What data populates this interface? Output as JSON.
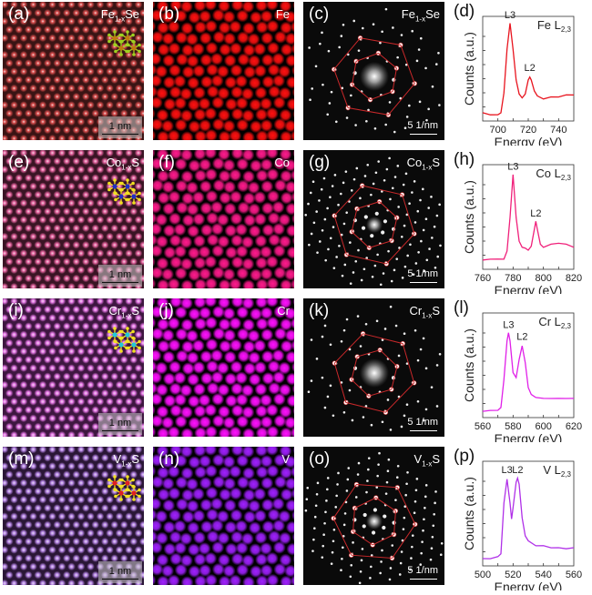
{
  "figure": {
    "rows": [
      {
        "haadf": {
          "label": "(a)",
          "compound_base": "Fe",
          "compound_sub": "1-x",
          "compound_end": "Se",
          "scale": "1 nm",
          "color": "#e05050",
          "bg": "#3a1414",
          "model_center": "#c07a10",
          "model_ligand": "#9fd020"
        },
        "map": {
          "label": "(b)",
          "element": "Fe",
          "color": "#ff1010"
        },
        "diffraction": {
          "label": "(c)",
          "compound_base": "Fe",
          "compound_sub": "1-x",
          "compound_end": "Se",
          "scale": "5 1/nm"
        },
        "eels": {
          "label": "(d)",
          "element_label": "Fe L",
          "edge_sub": "2,3",
          "color": "#e8141e"
        }
      },
      {
        "haadf": {
          "label": "(e)",
          "compound_base": "Co",
          "compound_sub": "1-x",
          "compound_end": "S",
          "scale": "1 nm",
          "color": "#f06aa8",
          "bg": "#3a1424",
          "model_center": "#2030c0",
          "model_ligand": "#f0e020"
        },
        "map": {
          "label": "(f)",
          "element": "Co",
          "color": "#ff1a8c"
        },
        "diffraction": {
          "label": "(g)",
          "compound_base": "Co",
          "compound_sub": "1-x",
          "compound_end": "S",
          "scale": "5 1/nm"
        },
        "eels": {
          "label": "(h)",
          "element_label": "Co L",
          "edge_sub": "2,3",
          "color": "#f0207a"
        }
      },
      {
        "haadf": {
          "label": "(i)",
          "compound_base": "Cr",
          "compound_sub": "1-x",
          "compound_end": "S",
          "scale": "1 nm",
          "color": "#f080f0",
          "bg": "#3e1640",
          "model_center": "#20c8d8",
          "model_ligand": "#f0e020"
        },
        "map": {
          "label": "(j)",
          "element": "Cr",
          "color": "#ff10ff"
        },
        "diffraction": {
          "label": "(k)",
          "compound_base": "Cr",
          "compound_sub": "1-x",
          "compound_end": "S",
          "scale": "5 1/nm"
        },
        "eels": {
          "label": "(l)",
          "element_label": "Cr L",
          "edge_sub": "2,3",
          "color": "#e020e8"
        }
      },
      {
        "haadf": {
          "label": "(m)",
          "compound_base": "V",
          "compound_sub": "1-x",
          "compound_end": "S",
          "scale": "1 nm",
          "color": "#c08ef0",
          "bg": "#2a1636",
          "model_center": "#e02020",
          "model_ligand": "#f0e020"
        },
        "map": {
          "label": "(n)",
          "element": "V",
          "color": "#a020ff"
        },
        "diffraction": {
          "label": "(o)",
          "compound_base": "V",
          "compound_sub": "1-x",
          "compound_end": "S",
          "scale": "5 1/nm"
        },
        "eels": {
          "label": "(p)",
          "element_label": "V L",
          "edge_sub": "2,3",
          "color": "#b030e8"
        }
      }
    ]
  },
  "chart_data": [
    {
      "type": "line",
      "panel": "(d)",
      "title": "Fe L2,3",
      "xlabel": "Energy (eV)",
      "ylabel": "Counts (a.u.)",
      "xlim": [
        690,
        750
      ],
      "xticks": [
        700,
        720,
        740
      ],
      "peaks": [
        {
          "name": "L3",
          "x": 708,
          "y": 0.95
        },
        {
          "name": "L2",
          "x": 721,
          "y": 0.42
        }
      ],
      "x": [
        690,
        695,
        700,
        702,
        704,
        706,
        708,
        710,
        712,
        714,
        716,
        718,
        720,
        721,
        722,
        724,
        726,
        730,
        735,
        740,
        745,
        750
      ],
      "y": [
        0.05,
        0.04,
        0.03,
        0.06,
        0.25,
        0.7,
        0.95,
        0.7,
        0.38,
        0.25,
        0.2,
        0.25,
        0.38,
        0.42,
        0.38,
        0.28,
        0.22,
        0.2,
        0.21,
        0.22,
        0.23,
        0.24
      ]
    },
    {
      "type": "line",
      "panel": "(h)",
      "title": "Co L2,3",
      "xlabel": "Energy (eV)",
      "ylabel": "Counts (a.u.)",
      "xlim": [
        760,
        820
      ],
      "xticks": [
        760,
        780,
        800,
        820
      ],
      "peaks": [
        {
          "name": "L3",
          "x": 780,
          "y": 0.92
        },
        {
          "name": "L2",
          "x": 795,
          "y": 0.45
        }
      ],
      "x": [
        760,
        765,
        770,
        774,
        776,
        778,
        780,
        782,
        784,
        786,
        788,
        790,
        792,
        794,
        795,
        796,
        798,
        800,
        805,
        810,
        815,
        820
      ],
      "y": [
        0.06,
        0.08,
        0.07,
        0.08,
        0.15,
        0.5,
        0.92,
        0.5,
        0.25,
        0.2,
        0.18,
        0.17,
        0.2,
        0.38,
        0.45,
        0.38,
        0.22,
        0.2,
        0.22,
        0.24,
        0.22,
        0.2
      ]
    },
    {
      "type": "line",
      "panel": "(l)",
      "title": "Cr L2,3",
      "xlabel": "Energy (eV)",
      "ylabel": "Counts (a.u.)",
      "xlim": [
        560,
        620
      ],
      "xticks": [
        560,
        580,
        600,
        620
      ],
      "peaks": [
        {
          "name": "L3",
          "x": 577,
          "y": 0.82
        },
        {
          "name": "L2",
          "x": 586,
          "y": 0.7
        }
      ],
      "x": [
        560,
        565,
        570,
        572,
        574,
        576,
        577,
        578,
        580,
        582,
        584,
        586,
        588,
        590,
        592,
        595,
        600,
        605,
        610,
        615,
        620
      ],
      "y": [
        0.03,
        0.05,
        0.04,
        0.08,
        0.35,
        0.75,
        0.82,
        0.75,
        0.42,
        0.38,
        0.55,
        0.7,
        0.52,
        0.28,
        0.2,
        0.18,
        0.16,
        0.17,
        0.16,
        0.17,
        0.16
      ]
    },
    {
      "type": "line",
      "panel": "(p)",
      "title": "V L2,3",
      "xlabel": "Energy (eV)",
      "ylabel": "Counts (a.u.)",
      "xlim": [
        500,
        560
      ],
      "xticks": [
        500,
        520,
        540,
        560
      ],
      "peaks": [
        {
          "name": "L3",
          "x": 516,
          "y": 0.85
        },
        {
          "name": "L2",
          "x": 523,
          "y": 0.85
        }
      ],
      "x": [
        500,
        505,
        510,
        512,
        514,
        516,
        518,
        519,
        520,
        522,
        523,
        524,
        526,
        528,
        530,
        535,
        540,
        545,
        550,
        555,
        560
      ],
      "y": [
        0.04,
        0.05,
        0.06,
        0.1,
        0.6,
        0.85,
        0.6,
        0.45,
        0.55,
        0.82,
        0.85,
        0.8,
        0.45,
        0.28,
        0.22,
        0.18,
        0.17,
        0.16,
        0.15,
        0.15,
        0.15
      ]
    }
  ]
}
